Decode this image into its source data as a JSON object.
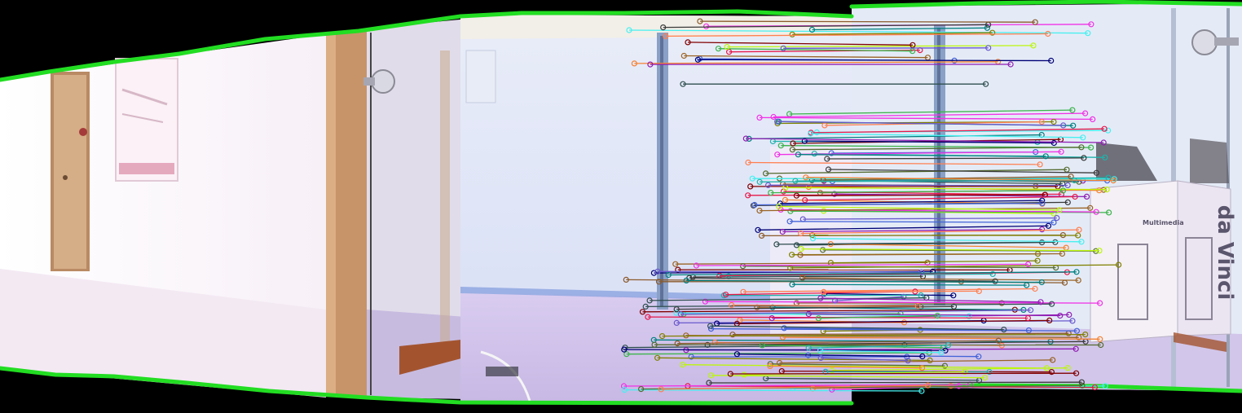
{
  "image": {
    "kind": "panorama-stitch-with-feature-matches",
    "background": "#000000",
    "seam_border_color": "#22dd22",
    "frames_visible": 4,
    "match_line_palette": [
      "#e6194b",
      "#3cb44b",
      "#4363d8",
      "#f58231",
      "#911eb4",
      "#46f0f0",
      "#f032e6",
      "#bcf60c",
      "#008080",
      "#9a6324",
      "#800000",
      "#808000",
      "#000075",
      "#3a3a3a",
      "#8b5a2b",
      "#2f4f4f",
      "#6a5acd",
      "#ff7f50",
      "#20b2aa",
      "#556b2f"
    ]
  },
  "scene": {
    "wall_color": "#dfe6f8",
    "floor_color": "#cdbfe6",
    "hallway_wall_color": "#fbf4fb",
    "door_color": "#c49a70",
    "box_label_text": "da Vinci",
    "box_side_label": "Multimedia"
  }
}
